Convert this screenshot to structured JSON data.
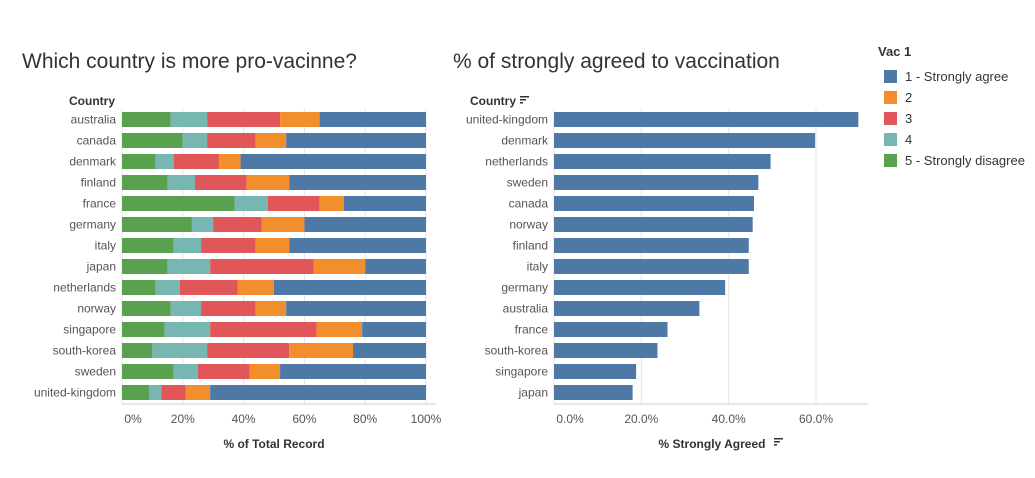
{
  "colors": {
    "c1": "#4e79a7",
    "c2": "#f28e2b",
    "c3": "#e15759",
    "c4": "#76b7b2",
    "c5": "#59a14f",
    "gridline": "#e6e6e6",
    "axis_text": "#555555"
  },
  "legend": {
    "title": "Vac 1",
    "items": [
      {
        "label": "1 - Strongly agree",
        "color": "#4e79a7"
      },
      {
        "label": "2",
        "color": "#f28e2b"
      },
      {
        "label": "3",
        "color": "#e15759"
      },
      {
        "label": "4",
        "color": "#76b7b2"
      },
      {
        "label": "5 - Strongly disagree",
        "color": "#59a14f"
      }
    ]
  },
  "chart_data": [
    {
      "type": "bar",
      "stacked": true,
      "orientation": "horizontal",
      "title": "Which country is more pro-vacinne?",
      "row_header": "Country",
      "xlabel": "% of Total Record",
      "xlim": [
        0,
        100
      ],
      "xticks": [
        "0%",
        "20%",
        "40%",
        "60%",
        "80%",
        "100%"
      ],
      "categories": [
        "australia",
        "canada",
        "denmark",
        "finland",
        "france",
        "germany",
        "italy",
        "japan",
        "netherlands",
        "norway",
        "singapore",
        "south-korea",
        "sweden",
        "united-kingdom"
      ],
      "series": [
        {
          "name": "5 - Strongly disagree",
          "color": "#59a14f",
          "values": [
            16,
            20,
            11,
            15,
            37,
            23,
            17,
            15,
            11,
            16,
            14,
            10,
            17,
            9
          ]
        },
        {
          "name": "4",
          "color": "#76b7b2",
          "values": [
            12,
            8,
            6,
            9,
            11,
            7,
            9,
            14,
            8,
            10,
            15,
            18,
            8,
            4
          ]
        },
        {
          "name": "3",
          "color": "#e15759",
          "values": [
            24,
            16,
            15,
            17,
            17,
            16,
            18,
            34,
            19,
            18,
            35,
            27,
            17,
            8
          ]
        },
        {
          "name": "2",
          "color": "#f28e2b",
          "values": [
            13,
            10,
            7,
            14,
            8,
            14,
            11,
            17,
            12,
            10,
            15,
            21,
            10,
            8
          ]
        },
        {
          "name": "1 - Strongly agree",
          "color": "#4e79a7",
          "values": [
            35,
            46,
            61,
            45,
            27,
            40,
            45,
            20,
            50,
            46,
            21,
            24,
            48,
            71
          ]
        }
      ]
    },
    {
      "type": "bar",
      "orientation": "horizontal",
      "title": "% of strongly agreed to vaccination",
      "row_header": "Country",
      "xlabel": "% Strongly Agreed",
      "xlim": [
        0,
        72
      ],
      "xticks": [
        0,
        20,
        40,
        60
      ],
      "xtick_labels": [
        "0.0%",
        "20.0%",
        "40.0%",
        "60.0%"
      ],
      "categories": [
        "united-kingdom",
        "denmark",
        "netherlands",
        "sweden",
        "canada",
        "norway",
        "finland",
        "italy",
        "germany",
        "australia",
        "france",
        "south-korea",
        "singapore",
        "japan"
      ],
      "values": [
        69.7,
        59.8,
        49.6,
        46.8,
        45.8,
        45.5,
        44.6,
        44.6,
        39.2,
        33.3,
        26.0,
        23.7,
        18.8,
        18.0
      ],
      "color": "#4e79a7"
    }
  ]
}
